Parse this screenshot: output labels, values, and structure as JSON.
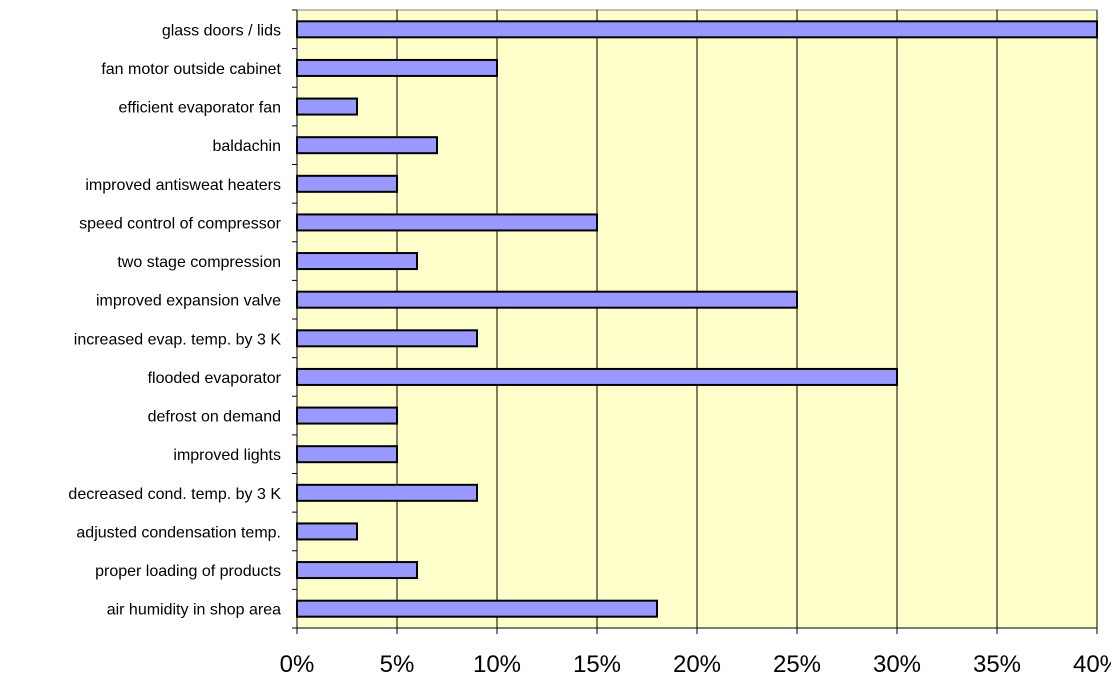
{
  "chart_data": {
    "type": "bar",
    "orientation": "horizontal",
    "categories": [
      "glass doors / lids",
      "fan motor outside cabinet",
      "efficient evaporator fan",
      "baldachin",
      "improved antisweat heaters",
      "speed control of compressor",
      "two stage compression",
      "improved expansion valve",
      "increased evap. temp. by 3 K",
      "flooded evaporator",
      "defrost on demand",
      "improved lights",
      "decreased cond. temp. by 3 K",
      "adjusted condensation temp.",
      "proper loading of products",
      "air humidity in shop area"
    ],
    "values": [
      40,
      10,
      3,
      7,
      5,
      15,
      6,
      25,
      9,
      30,
      5,
      5,
      9,
      3,
      6,
      18
    ],
    "xlim": [
      0,
      40
    ],
    "xticks": [
      0,
      5,
      10,
      15,
      20,
      25,
      30,
      35,
      40
    ],
    "xtick_labels": [
      "0%",
      "5%",
      "10%",
      "15%",
      "20%",
      "25%",
      "30%",
      "35%",
      "40%"
    ],
    "title": "",
    "xlabel": "",
    "ylabel": "",
    "grid": "vertical",
    "legend": "none",
    "colors": {
      "bar_fill": "#9999ff",
      "bar_stroke": "#000000",
      "plot_background": "#ffffcc",
      "gridline": "#000000"
    }
  }
}
